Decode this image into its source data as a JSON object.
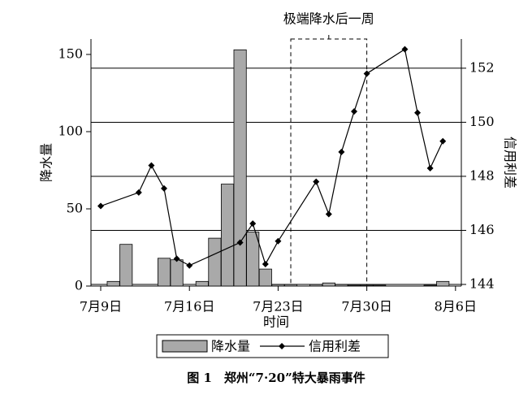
{
  "chart_data": {
    "type": "combo",
    "caption": "图 1　郑州“7·20”特大暴雨事件",
    "xlabel": "时间",
    "ylabel": "降水量",
    "y2label": "信用利差",
    "xlim": [
      8.23,
      37.46
    ],
    "xticks": [
      {
        "value": 9,
        "label": "7月9日"
      },
      {
        "value": 16,
        "label": "7月16日"
      },
      {
        "value": 23,
        "label": "7月23日"
      },
      {
        "value": 30,
        "label": "7月30日"
      },
      {
        "value": 37,
        "label": "8月6日"
      }
    ],
    "ylim": [
      0,
      160
    ],
    "yticks": [
      0,
      50,
      100,
      150
    ],
    "y2lim": [
      143.94,
      153.08
    ],
    "y2ticks": [
      144,
      146,
      148,
      150,
      152
    ],
    "grid": "y2",
    "highlight": {
      "label": "极端降水后一周",
      "x": [
        24,
        30
      ]
    },
    "series": [
      {
        "name": "降水量",
        "type": "bar",
        "color": "#a9a9a9",
        "x": [
          10,
          11,
          14,
          15,
          17,
          18,
          19,
          20,
          21,
          22,
          23,
          24,
          26,
          27,
          28,
          29,
          30,
          31,
          35,
          36
        ],
        "values": [
          3,
          27,
          18,
          17,
          3,
          31,
          66,
          153,
          35,
          11,
          1,
          1,
          1,
          2,
          1,
          0.5,
          0.5,
          0.5,
          0.5,
          3
        ]
      },
      {
        "name": "信用利差",
        "type": "line",
        "axis": "y2",
        "color": "#000000",
        "x": [
          9,
          12,
          13,
          14,
          15,
          16,
          20,
          21,
          22,
          23,
          26,
          27,
          28,
          29,
          30,
          33,
          34,
          35,
          36
        ],
        "values": [
          146.9,
          147.4,
          148.4,
          147.55,
          144.95,
          144.7,
          145.55,
          146.25,
          144.75,
          145.6,
          147.8,
          146.6,
          148.9,
          150.4,
          151.8,
          152.7,
          150.35,
          148.3,
          149.3
        ]
      }
    ]
  }
}
